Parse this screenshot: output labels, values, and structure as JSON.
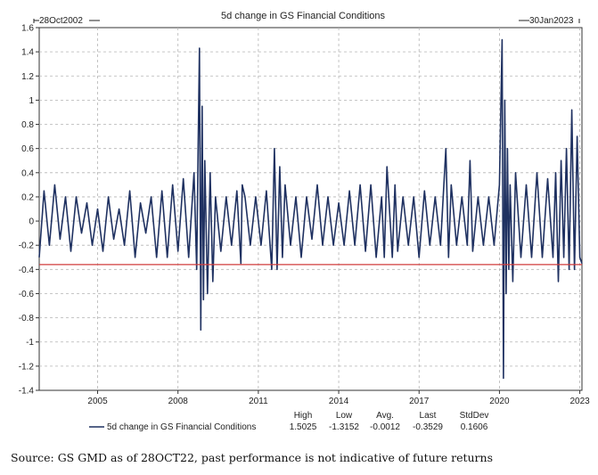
{
  "chart_data": {
    "type": "line",
    "title": "5d change in GS Financial Conditions",
    "start_label": "28Oct2002",
    "end_label": "30Jan2023",
    "x_range": [
      2002.82,
      2023.08
    ],
    "ylim": [
      -1.4,
      1.6
    ],
    "yticks": [
      "1.6",
      "1.4",
      "1.2",
      "1",
      "0.8",
      "0.6",
      "0.4",
      "0.2",
      "0",
      "-0.2",
      "-0.4",
      "-0.6",
      "-0.8",
      "-1",
      "-1.2",
      "-1.4"
    ],
    "ytick_values": [
      1.6,
      1.4,
      1.2,
      1.0,
      0.8,
      0.6,
      0.4,
      0.2,
      0,
      -0.2,
      -0.4,
      -0.6,
      -0.8,
      -1.0,
      -1.2,
      -1.4
    ],
    "xticks": [
      "2005",
      "2008",
      "2011",
      "2014",
      "2017",
      "2020",
      "2023"
    ],
    "xtick_values": [
      2005,
      2008,
      2011,
      2014,
      2017,
      2020,
      2023
    ],
    "grid": true,
    "series": [
      {
        "name": "5d change in GS Financial Conditions",
        "color": "#1f3161",
        "x": [
          2002.82,
          2003.0,
          2003.2,
          2003.4,
          2003.6,
          2003.8,
          2004.0,
          2004.2,
          2004.4,
          2004.6,
          2004.8,
          2005.0,
          2005.2,
          2005.4,
          2005.6,
          2005.8,
          2006.0,
          2006.2,
          2006.4,
          2006.6,
          2006.8,
          2007.0,
          2007.2,
          2007.4,
          2007.6,
          2007.8,
          2008.0,
          2008.2,
          2008.4,
          2008.6,
          2008.7,
          2008.75,
          2008.8,
          2008.85,
          2008.9,
          2008.95,
          2009.0,
          2009.1,
          2009.2,
          2009.3,
          2009.4,
          2009.6,
          2009.8,
          2010.0,
          2010.2,
          2010.35,
          2010.4,
          2010.5,
          2010.7,
          2010.9,
          2011.1,
          2011.3,
          2011.5,
          2011.6,
          2011.7,
          2011.8,
          2011.9,
          2012.0,
          2012.2,
          2012.4,
          2012.6,
          2012.8,
          2013.0,
          2013.2,
          2013.4,
          2013.6,
          2013.8,
          2014.0,
          2014.2,
          2014.4,
          2014.6,
          2014.8,
          2015.0,
          2015.2,
          2015.4,
          2015.6,
          2015.7,
          2015.8,
          2016.0,
          2016.1,
          2016.2,
          2016.4,
          2016.6,
          2016.8,
          2017.0,
          2017.2,
          2017.4,
          2017.6,
          2017.8,
          2018.0,
          2018.1,
          2018.2,
          2018.4,
          2018.6,
          2018.8,
          2018.9,
          2019.0,
          2019.2,
          2019.4,
          2019.6,
          2019.8,
          2020.0,
          2020.1,
          2020.15,
          2020.2,
          2020.25,
          2020.3,
          2020.35,
          2020.4,
          2020.5,
          2020.6,
          2020.8,
          2021.0,
          2021.2,
          2021.4,
          2021.6,
          2021.8,
          2022.0,
          2022.1,
          2022.2,
          2022.3,
          2022.4,
          2022.5,
          2022.6,
          2022.7,
          2022.8,
          2022.9,
          2023.0,
          2023.08
        ],
        "values": [
          -0.3,
          0.25,
          -0.2,
          0.3,
          -0.15,
          0.2,
          -0.25,
          0.2,
          -0.1,
          0.15,
          -0.2,
          0.1,
          -0.25,
          0.2,
          -0.15,
          0.1,
          -0.2,
          0.25,
          -0.3,
          0.15,
          -0.1,
          0.2,
          -0.3,
          0.25,
          -0.3,
          0.3,
          -0.25,
          0.35,
          -0.3,
          0.4,
          -0.4,
          0.6,
          1.43,
          -0.9,
          0.95,
          -0.65,
          0.5,
          -0.6,
          0.4,
          -0.5,
          0.2,
          -0.25,
          0.2,
          -0.2,
          0.25,
          -0.35,
          0.3,
          0.2,
          -0.2,
          0.2,
          -0.2,
          0.25,
          -0.4,
          0.6,
          -0.4,
          0.45,
          -0.3,
          0.3,
          -0.2,
          0.2,
          -0.3,
          0.2,
          -0.15,
          0.3,
          -0.2,
          0.2,
          -0.2,
          0.15,
          -0.2,
          0.25,
          -0.2,
          0.3,
          -0.25,
          0.3,
          -0.3,
          0.2,
          -0.3,
          0.45,
          -0.3,
          0.3,
          -0.25,
          0.2,
          -0.2,
          0.2,
          -0.3,
          0.25,
          -0.2,
          0.2,
          -0.2,
          0.6,
          -0.3,
          0.3,
          -0.2,
          0.2,
          -0.2,
          0.5,
          -0.25,
          0.2,
          -0.2,
          0.2,
          -0.2,
          0.3,
          1.5,
          -1.3,
          1.0,
          -0.6,
          0.6,
          -0.4,
          0.3,
          -0.5,
          0.4,
          -0.3,
          0.3,
          -0.3,
          0.4,
          -0.3,
          0.35,
          -0.3,
          0.4,
          -0.5,
          0.5,
          -0.3,
          0.6,
          -0.4,
          0.92,
          -0.4,
          0.7,
          -0.3,
          -0.35
        ]
      }
    ],
    "reference_line": {
      "value": -0.36,
      "color": "#d23c3c"
    },
    "stats": {
      "headers": [
        "High",
        "Low",
        "Avg.",
        "Last",
        "StdDev"
      ],
      "values": [
        "1.5025",
        "-1.3152",
        "-0.0012",
        "-0.3529",
        "0.1606"
      ]
    }
  },
  "source_text": "Source: GS GMD as of 28OCT22, past performance is not indicative of future returns"
}
